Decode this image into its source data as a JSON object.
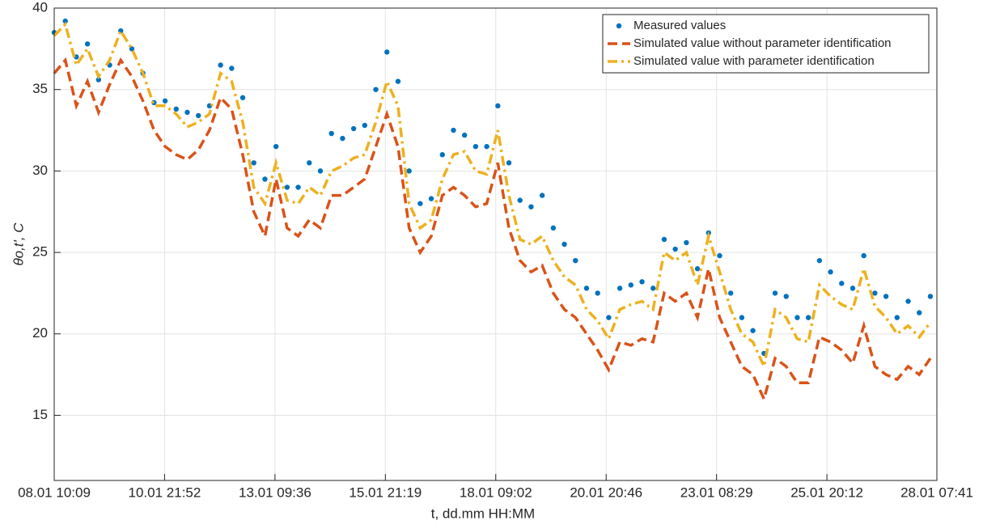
{
  "chart_data": {
    "type": "line",
    "x_label": "t, dd.mm HH:MM",
    "y_label": "θo,t',  C",
    "x": [
      "08.01 10:09",
      "08.01 16:09",
      "08.01 22:09",
      "09.01 04:09",
      "09.01 10:09",
      "09.01 16:09",
      "09.01 22:09",
      "10.01 04:09",
      "10.01 10:09",
      "10.01 16:09",
      "10.01 22:09",
      "11.01 04:09",
      "11.01 10:09",
      "11.01 16:09",
      "11.01 22:09",
      "12.01 04:09",
      "12.01 10:09",
      "12.01 16:09",
      "12.01 22:09",
      "13.01 04:09",
      "13.01 10:09",
      "13.01 16:09",
      "13.01 22:09",
      "14.01 04:09",
      "14.01 10:09",
      "14.01 16:09",
      "14.01 22:09",
      "15.01 04:09",
      "15.01 10:09",
      "15.01 16:09",
      "15.01 22:09",
      "16.01 04:09",
      "16.01 10:09",
      "16.01 16:09",
      "16.01 22:09",
      "17.01 04:09",
      "17.01 10:09",
      "17.01 16:09",
      "17.01 22:09",
      "18.01 04:09",
      "18.01 10:09",
      "18.01 16:09",
      "18.01 22:09",
      "19.01 04:09",
      "19.01 10:09",
      "19.01 16:09",
      "19.01 22:09",
      "20.01 04:09",
      "20.01 10:09",
      "20.01 16:09",
      "20.01 22:09",
      "21.01 04:09",
      "21.01 10:09",
      "21.01 16:09",
      "21.01 22:09",
      "22.01 04:09",
      "22.01 10:09",
      "22.01 16:09",
      "22.01 22:09",
      "23.01 04:09",
      "23.01 10:09",
      "23.01 16:09",
      "23.01 22:09",
      "24.01 04:09",
      "24.01 10:09",
      "24.01 16:09",
      "24.01 22:09",
      "25.01 04:09",
      "25.01 10:09",
      "25.01 16:09",
      "25.01 22:09",
      "26.01 04:09",
      "26.01 10:09",
      "26.01 16:09",
      "26.01 22:09",
      "27.01 04:09",
      "27.01 10:09",
      "27.01 16:09",
      "27.01 22:09",
      "28.01 04:09"
    ],
    "series": [
      {
        "name": "Measured values",
        "color": "#0072BD",
        "style": "dots",
        "values": [
          38.5,
          39.2,
          37.0,
          37.8,
          35.6,
          36.5,
          38.6,
          37.5,
          36.0,
          34.2,
          34.3,
          33.8,
          33.6,
          33.4,
          34.0,
          36.5,
          36.3,
          34.5,
          30.5,
          29.5,
          31.5,
          29.0,
          29.0,
          30.5,
          30.0,
          32.3,
          32.0,
          32.6,
          32.8,
          35.0,
          37.3,
          35.5,
          30.0,
          28.0,
          28.3,
          31.0,
          32.5,
          32.2,
          31.5,
          31.5,
          34.0,
          30.5,
          28.2,
          27.8,
          28.5,
          26.5,
          25.5,
          24.5,
          22.8,
          22.5,
          21.0,
          22.8,
          23.0,
          23.2,
          22.8,
          25.8,
          25.2,
          25.6,
          24.0,
          26.2,
          24.8,
          22.5,
          21.0,
          20.2,
          18.8,
          22.5,
          22.3,
          21.0,
          21.0,
          24.5,
          23.8,
          23.1,
          22.8,
          24.8,
          22.5,
          22.3,
          21.0,
          22.0,
          21.3,
          22.3
        ]
      },
      {
        "name": "Simulated value without parameter identification",
        "color": "#D95319",
        "style": "dashed",
        "values": [
          36.0,
          36.8,
          34.0,
          35.5,
          33.6,
          35.3,
          36.8,
          35.8,
          34.3,
          32.5,
          31.5,
          31.0,
          30.7,
          31.3,
          32.5,
          34.5,
          33.8,
          31.0,
          27.5,
          26.0,
          29.5,
          26.5,
          26.0,
          27.0,
          26.5,
          28.5,
          28.5,
          29.0,
          29.5,
          31.5,
          33.5,
          31.5,
          26.5,
          25.0,
          26.0,
          28.5,
          29.0,
          28.5,
          27.8,
          28.0,
          30.5,
          26.5,
          24.5,
          23.8,
          24.2,
          22.5,
          21.5,
          21.0,
          20.0,
          19.0,
          17.8,
          19.5,
          19.3,
          19.7,
          19.5,
          22.5,
          22.0,
          22.5,
          21.0,
          24.0,
          21.0,
          19.5,
          18.0,
          17.5,
          16.0,
          18.5,
          18.0,
          17.0,
          17.0,
          19.8,
          19.5,
          19.0,
          18.2,
          20.5,
          18.0,
          17.5,
          17.2,
          18.0,
          17.5,
          18.5
        ]
      },
      {
        "name": "Simulated value with parameter identification",
        "color": "#EDB120",
        "style": "dashdot",
        "values": [
          38.3,
          39.0,
          36.5,
          37.5,
          35.8,
          36.8,
          38.6,
          37.5,
          36.0,
          34.0,
          34.0,
          33.5,
          32.7,
          33.0,
          33.5,
          36.0,
          35.5,
          33.0,
          29.0,
          28.0,
          30.5,
          28.2,
          28.0,
          29.0,
          28.5,
          30.0,
          30.3,
          30.8,
          31.0,
          33.0,
          35.5,
          34.0,
          28.0,
          26.5,
          27.0,
          29.5,
          31.0,
          31.2,
          30.0,
          29.8,
          32.5,
          28.5,
          25.8,
          25.5,
          26.0,
          24.5,
          23.5,
          23.0,
          21.5,
          20.8,
          19.7,
          21.5,
          21.8,
          22.0,
          21.5,
          25.0,
          24.5,
          25.0,
          23.0,
          26.0,
          23.8,
          21.5,
          20.0,
          19.5,
          18.0,
          21.5,
          21.0,
          19.7,
          19.5,
          23.0,
          22.3,
          21.8,
          21.5,
          24.0,
          21.7,
          21.0,
          20.0,
          20.5,
          19.8,
          20.7
        ]
      }
    ],
    "xlim": [
      "08.01 10:09",
      "28.01 07:41"
    ],
    "xticks": [
      "08.01 10:09",
      "10.01 21:52",
      "13.01 09:36",
      "15.01 21:19",
      "18.01 09:02",
      "20.01 20:46",
      "23.01 08:29",
      "25.01 20:12",
      "28.01 07:41"
    ],
    "ylim": [
      11,
      40
    ],
    "yticks": [
      15,
      20,
      25,
      30,
      35,
      40
    ],
    "grid": true,
    "legend": "upper right"
  }
}
